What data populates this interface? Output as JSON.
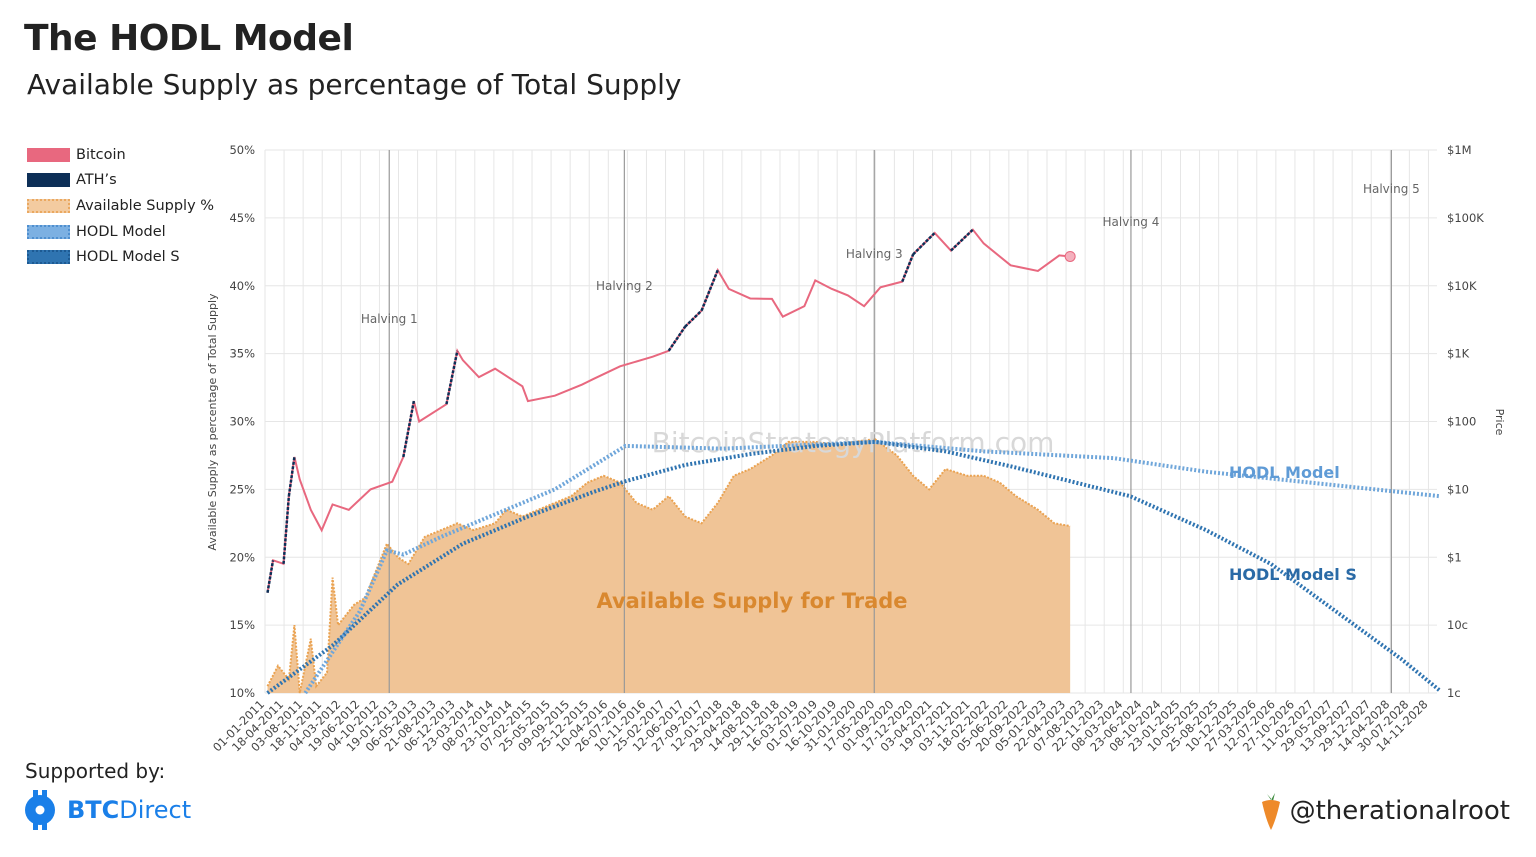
{
  "header": {
    "title": "The HODL Model",
    "subtitle": "Available Supply as percentage of Total Supply"
  },
  "legend": [
    {
      "label": "Bitcoin",
      "color": "#e8687f"
    },
    {
      "label": "ATH’s",
      "color": "#0d2f57"
    },
    {
      "label": "Available Supply %",
      "color": "#f0c496"
    },
    {
      "label": "HODL Model",
      "color": "#6fa6da"
    },
    {
      "label": "HODL Model S",
      "color": "#2f74b1"
    }
  ],
  "footer": {
    "supported_by": "Supported by:",
    "sponsor_bold": "BTC",
    "sponsor_rest": "Direct",
    "handle": "@therationalroot"
  },
  "chart_data": {
    "type": "line",
    "title": "The HODL Model",
    "subtitle": "Available Supply as percentage of Total Supply",
    "ylabel": "Available Supply as percentage of Total Supply",
    "y2label": "Price",
    "ylim": [
      10,
      50
    ],
    "y_ticks": [
      "10%",
      "15%",
      "20%",
      "25%",
      "30%",
      "35%",
      "40%",
      "45%",
      "50%"
    ],
    "y2_scale": "log",
    "y2lim": [
      0.01,
      1000000
    ],
    "y2_ticks": [
      "1c",
      "10c",
      "$1",
      "$10",
      "$100",
      "$1K",
      "$10K",
      "$100K",
      "$1M"
    ],
    "xlim": [
      "2011-01-01",
      "2029-01-01"
    ],
    "x_ticks": [
      "01-01-2011",
      "18-04-2011",
      "03-08-2011",
      "18-11-2011",
      "04-03-2012",
      "19-06-2012",
      "04-10-2012",
      "19-01-2013",
      "06-05-2013",
      "21-08-2013",
      "06-12-2013",
      "23-03-2014",
      "08-07-2014",
      "23-10-2014",
      "07-02-2015",
      "25-05-2015",
      "09-09-2015",
      "25-12-2015",
      "10-04-2016",
      "26-07-2016",
      "10-11-2016",
      "25-02-2017",
      "12-06-2017",
      "27-09-2017",
      "12-01-2018",
      "29-04-2018",
      "14-08-2018",
      "29-11-2018",
      "16-03-2019",
      "01-07-2019",
      "16-10-2019",
      "31-01-2020",
      "17-05-2020",
      "01-09-2020",
      "17-12-2020",
      "03-04-2021",
      "19-07-2021",
      "03-11-2021",
      "18-02-2022",
      "05-06-2022",
      "20-09-2022",
      "05-01-2023",
      "22-04-2023",
      "07-08-2023",
      "22-11-2023",
      "08-03-2024",
      "23-06-2024",
      "08-10-2024",
      "23-01-2025",
      "10-05-2025",
      "25-08-2025",
      "10-12-2025",
      "27-03-2026",
      "12-07-2026",
      "27-10-2026",
      "11-02-2027",
      "29-05-2027",
      "13-09-2027",
      "29-12-2027",
      "14-04-2028",
      "30-07-2028",
      "14-11-2028"
    ],
    "grid": true,
    "legend_position": "left",
    "halvings": [
      {
        "label": "Halving 1",
        "date": "2012-11-28"
      },
      {
        "label": "Halving 2",
        "date": "2016-07-09"
      },
      {
        "label": "Halving 3",
        "date": "2020-05-11"
      },
      {
        "label": "Halving 4",
        "date": "2024-04-20"
      },
      {
        "label": "Halving 5",
        "date": "2028-04-20"
      }
    ],
    "annotations": {
      "supply": "Available Supply for Trade",
      "hodl": "HODL Model",
      "hodl_s": "HODL Model S",
      "watermark": "BitcoinStrategyPlatform.com"
    },
    "series": [
      {
        "name": "Bitcoin",
        "axis": "right",
        "color": "#e8687f",
        "x": [
          "2011-01",
          "2011-02",
          "2011-04",
          "2011-05",
          "2011-06",
          "2011-07",
          "2011-09",
          "2011-11",
          "2012-01",
          "2012-04",
          "2012-08",
          "2012-12",
          "2013-02",
          "2013-04",
          "2013-05",
          "2013-10",
          "2013-12",
          "2014-01",
          "2014-04",
          "2014-07",
          "2014-12",
          "2015-01",
          "2015-06",
          "2015-11",
          "2016-01",
          "2016-06",
          "2016-12",
          "2017-03",
          "2017-06",
          "2017-09",
          "2017-12",
          "2018-02",
          "2018-06",
          "2018-10",
          "2018-12",
          "2019-04",
          "2019-06",
          "2019-09",
          "2019-12",
          "2020-03",
          "2020-06",
          "2020-10",
          "2020-12",
          "2021-04",
          "2021-07",
          "2021-11",
          "2022-01",
          "2022-06",
          "2022-11",
          "2023-03",
          "2023-05"
        ],
        "y": [
          0.3,
          0.9,
          0.8,
          8,
          30,
          14,
          5,
          2.5,
          6,
          5,
          10,
          13,
          30,
          200,
          100,
          180,
          1100,
          800,
          450,
          600,
          330,
          200,
          240,
          350,
          420,
          650,
          900,
          1100,
          2500,
          4300,
          17000,
          9000,
          6500,
          6400,
          3500,
          5000,
          12000,
          9000,
          7200,
          5000,
          9500,
          11500,
          29000,
          60000,
          33000,
          67000,
          42000,
          20000,
          16500,
          28000,
          27000
        ]
      },
      {
        "name": "Available Supply %",
        "axis": "left",
        "color": "#f0c496",
        "x": [
          "2011-01",
          "2011-03",
          "2011-05",
          "2011-06",
          "2011-07",
          "2011-09",
          "2011-10",
          "2011-12",
          "2012-01",
          "2012-02",
          "2012-05",
          "2012-07",
          "2012-09",
          "2012-11",
          "2013-01",
          "2013-03",
          "2013-06",
          "2013-09",
          "2013-12",
          "2014-03",
          "2014-07",
          "2014-09",
          "2014-12",
          "2015-03",
          "2015-06",
          "2015-09",
          "2015-12",
          "2016-03",
          "2016-06",
          "2016-09",
          "2016-12",
          "2017-03",
          "2017-06",
          "2017-09",
          "2017-12",
          "2018-03",
          "2018-06",
          "2018-10",
          "2019-01",
          "2019-06",
          "2019-10",
          "2020-01",
          "2020-05",
          "2020-09",
          "2020-12",
          "2021-03",
          "2021-06",
          "2021-10",
          "2022-01",
          "2022-04",
          "2022-07",
          "2022-11",
          "2023-02",
          "2023-05"
        ],
        "y": [
          10.5,
          12,
          11,
          15,
          10,
          14,
          10.5,
          11.5,
          18.5,
          15,
          16.5,
          17,
          19,
          21,
          20,
          19.5,
          21.5,
          22,
          22.5,
          22,
          22.5,
          23.5,
          23,
          23.5,
          24,
          24.5,
          25.5,
          26,
          25.5,
          24,
          23.5,
          24.5,
          23,
          22.5,
          24,
          26,
          26.5,
          27.5,
          28.5,
          28.5,
          28.3,
          28.5,
          28.7,
          27.5,
          26,
          25,
          26.5,
          26,
          26,
          25.5,
          24.5,
          23.5,
          22.5,
          22.3
        ]
      },
      {
        "name": "HODL Model",
        "axis": "left",
        "color": "#6fa6da",
        "x": [
          "2011-08",
          "2012-06",
          "2012-11",
          "2013-02",
          "2013-09",
          "2014-06",
          "2015-06",
          "2016-07",
          "2018-01",
          "2020-05",
          "2022-01",
          "2024-01",
          "2025-06",
          "2027-06",
          "2029-01"
        ],
        "y": [
          10,
          16,
          20.5,
          20.2,
          21.5,
          23,
          25,
          28.2,
          28,
          28.5,
          27.8,
          27.3,
          26.3,
          25.3,
          24.5
        ]
      },
      {
        "name": "HODL Model S",
        "axis": "left",
        "color": "#2f74b1",
        "x": [
          "2011-01",
          "2012-01",
          "2013-01",
          "2014-01",
          "2015-01",
          "2016-01",
          "2016-07",
          "2017-06",
          "2018-06",
          "2019-06",
          "2020-05",
          "2021-06",
          "2022-06",
          "2023-06",
          "2024-04",
          "2025-06",
          "2026-06",
          "2027-06",
          "2028-06",
          "2029-01"
        ],
        "y": [
          10,
          13.5,
          18,
          21,
          23,
          24.8,
          25.6,
          26.8,
          27.6,
          28.2,
          28.5,
          27.8,
          26.7,
          25.5,
          24.5,
          22,
          19.5,
          16,
          12.5,
          10.2
        ]
      }
    ]
  }
}
